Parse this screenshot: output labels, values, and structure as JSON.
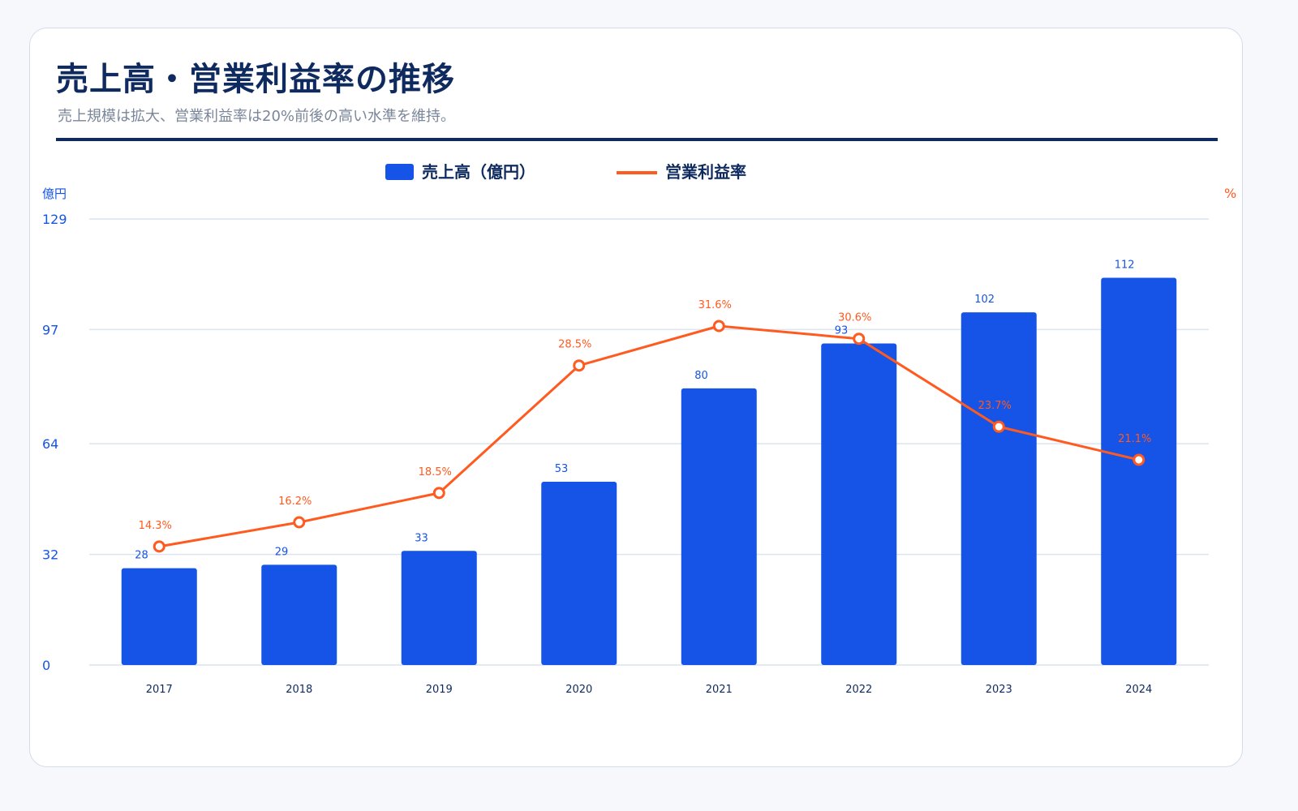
{
  "page": {
    "title": "売上高・営業利益率の推移",
    "subtitle": "売上規模は拡大、営業利益率は20%前後の高い水準を維持。"
  },
  "colors": {
    "bar": "#1554e6",
    "line": "#ff5a1f",
    "heading": "#0e2a5e",
    "grid": "#dbe4f0",
    "left_axis": "#1554e6",
    "right_axis": "#ff5a1f"
  },
  "chart_data": {
    "type": "bar",
    "title": "",
    "categories": [
      "2017",
      "2018",
      "2019",
      "2020",
      "2021",
      "2022",
      "2023",
      "2024"
    ],
    "series": [
      {
        "name": "売上高（億円）",
        "type": "bar",
        "axis": "left",
        "values": [
          28,
          29,
          33,
          53,
          80,
          93,
          102,
          112
        ],
        "labels": [
          "28",
          "29",
          "33",
          "53",
          "80",
          "93",
          "102",
          "112"
        ]
      },
      {
        "name": "営業利益率",
        "type": "line",
        "axis": "right",
        "values": [
          14.3,
          16.2,
          18.5,
          28.5,
          31.6,
          30.6,
          23.7,
          21.1
        ],
        "labels": [
          "14.3%",
          "16.2%",
          "18.5%",
          "28.5%",
          "31.6%",
          "30.6%",
          "23.7%",
          "21.1%"
        ]
      }
    ],
    "y_left": {
      "unit": "億円",
      "ticks": [
        "0",
        "32",
        "64",
        "97",
        "129"
      ],
      "min": 0,
      "max": 129
    },
    "y_right": {
      "unit": "%",
      "min": 5,
      "max": 40
    },
    "legend_position": "top-center",
    "grid": true
  }
}
